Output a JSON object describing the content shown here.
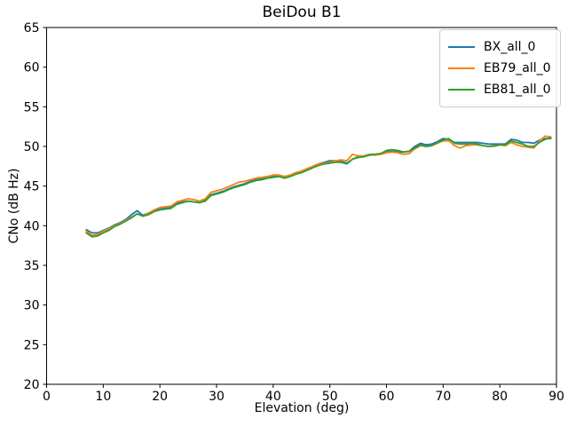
{
  "figure": {
    "title": "BeiDou B1",
    "xlabel": "Elevation (deg)",
    "ylabel": "CNo (dB Hz)"
  },
  "chart_data": {
    "type": "line",
    "title": "BeiDou B1",
    "xlabel": "Elevation (deg)",
    "ylabel": "CNo (dB Hz)",
    "xlim": [
      0,
      90
    ],
    "ylim": [
      20,
      65
    ],
    "x_ticks": [
      0,
      10,
      20,
      30,
      40,
      50,
      60,
      70,
      80,
      90
    ],
    "y_ticks": [
      20,
      25,
      30,
      35,
      40,
      45,
      50,
      55,
      60,
      65
    ],
    "grid": false,
    "legend_position": "upper right",
    "x": [
      7,
      8,
      9,
      10,
      11,
      12,
      13,
      14,
      15,
      16,
      17,
      18,
      19,
      20,
      21,
      22,
      23,
      24,
      25,
      26,
      27,
      28,
      29,
      30,
      31,
      32,
      33,
      34,
      35,
      36,
      37,
      38,
      39,
      40,
      41,
      42,
      43,
      44,
      45,
      46,
      47,
      48,
      49,
      50,
      51,
      52,
      53,
      54,
      55,
      56,
      57,
      58,
      59,
      60,
      61,
      62,
      63,
      64,
      65,
      66,
      67,
      68,
      69,
      70,
      71,
      72,
      73,
      74,
      75,
      76,
      77,
      78,
      79,
      80,
      81,
      82,
      83,
      84,
      85,
      86,
      87,
      88,
      89
    ],
    "series": [
      {
        "name": "BX_all_0",
        "color": "#1f77b4",
        "values": [
          39.5,
          39.1,
          39.1,
          39.4,
          39.7,
          40.1,
          40.4,
          40.8,
          41.4,
          41.9,
          41.3,
          41.6,
          41.9,
          42.1,
          42.2,
          42.3,
          42.8,
          43.0,
          43.1,
          43.0,
          42.9,
          43.2,
          43.9,
          44.1,
          44.3,
          44.6,
          44.9,
          45.1,
          45.3,
          45.6,
          45.8,
          45.9,
          46.1,
          46.2,
          46.3,
          46.1,
          46.3,
          46.6,
          46.8,
          47.1,
          47.5,
          47.8,
          48.0,
          48.2,
          48.2,
          48.1,
          47.9,
          48.4,
          48.7,
          48.8,
          49.0,
          49.0,
          49.1,
          49.3,
          49.4,
          49.3,
          49.3,
          49.4,
          50.0,
          50.4,
          50.2,
          50.3,
          50.6,
          51.0,
          50.9,
          50.5,
          50.5,
          50.5,
          50.5,
          50.5,
          50.4,
          50.3,
          50.3,
          50.3,
          50.3,
          50.9,
          50.8,
          50.5,
          50.5,
          50.4,
          50.8,
          51.0,
          51.0
        ]
      },
      {
        "name": "EB79_all_0",
        "color": "#ff7f0e",
        "values": [
          39.3,
          38.8,
          38.9,
          39.3,
          39.6,
          40.0,
          40.3,
          40.7,
          41.1,
          41.5,
          41.2,
          41.6,
          42.0,
          42.3,
          42.4,
          42.5,
          43.0,
          43.2,
          43.4,
          43.3,
          43.1,
          43.4,
          44.2,
          44.4,
          44.6,
          44.9,
          45.2,
          45.5,
          45.6,
          45.8,
          46.0,
          46.1,
          46.2,
          46.4,
          46.4,
          46.2,
          46.4,
          46.7,
          46.9,
          47.2,
          47.5,
          47.8,
          47.9,
          48.0,
          48.2,
          48.3,
          48.2,
          49.0,
          48.8,
          48.8,
          49.0,
          48.9,
          49.0,
          49.2,
          49.3,
          49.2,
          49.0,
          49.1,
          49.7,
          50.1,
          50.0,
          50.1,
          50.4,
          50.7,
          50.7,
          50.1,
          49.8,
          50.1,
          50.2,
          50.2,
          50.1,
          50.0,
          50.0,
          50.2,
          50.1,
          50.5,
          50.2,
          50.0,
          49.9,
          49.8,
          50.7,
          51.3,
          51.2
        ]
      },
      {
        "name": "EB81_all_0",
        "color": "#2ca02c",
        "values": [
          39.1,
          38.6,
          38.7,
          39.1,
          39.4,
          39.9,
          40.2,
          40.6,
          41.0,
          41.5,
          41.2,
          41.4,
          41.8,
          42.0,
          42.1,
          42.2,
          42.7,
          42.9,
          43.1,
          43.0,
          42.9,
          43.1,
          43.8,
          44.0,
          44.2,
          44.5,
          44.8,
          45.0,
          45.2,
          45.5,
          45.7,
          45.8,
          46.0,
          46.1,
          46.2,
          46.0,
          46.2,
          46.5,
          46.7,
          47.0,
          47.3,
          47.6,
          47.8,
          47.9,
          48.0,
          48.0,
          47.8,
          48.4,
          48.6,
          48.7,
          48.9,
          49.0,
          49.1,
          49.5,
          49.6,
          49.5,
          49.3,
          49.4,
          49.8,
          50.2,
          50.0,
          50.1,
          50.5,
          50.8,
          51.0,
          50.4,
          50.3,
          50.3,
          50.4,
          50.3,
          50.1,
          50.0,
          50.1,
          50.2,
          50.2,
          50.7,
          50.5,
          50.3,
          50.0,
          50.0,
          50.5,
          50.9,
          51.1
        ]
      }
    ]
  }
}
